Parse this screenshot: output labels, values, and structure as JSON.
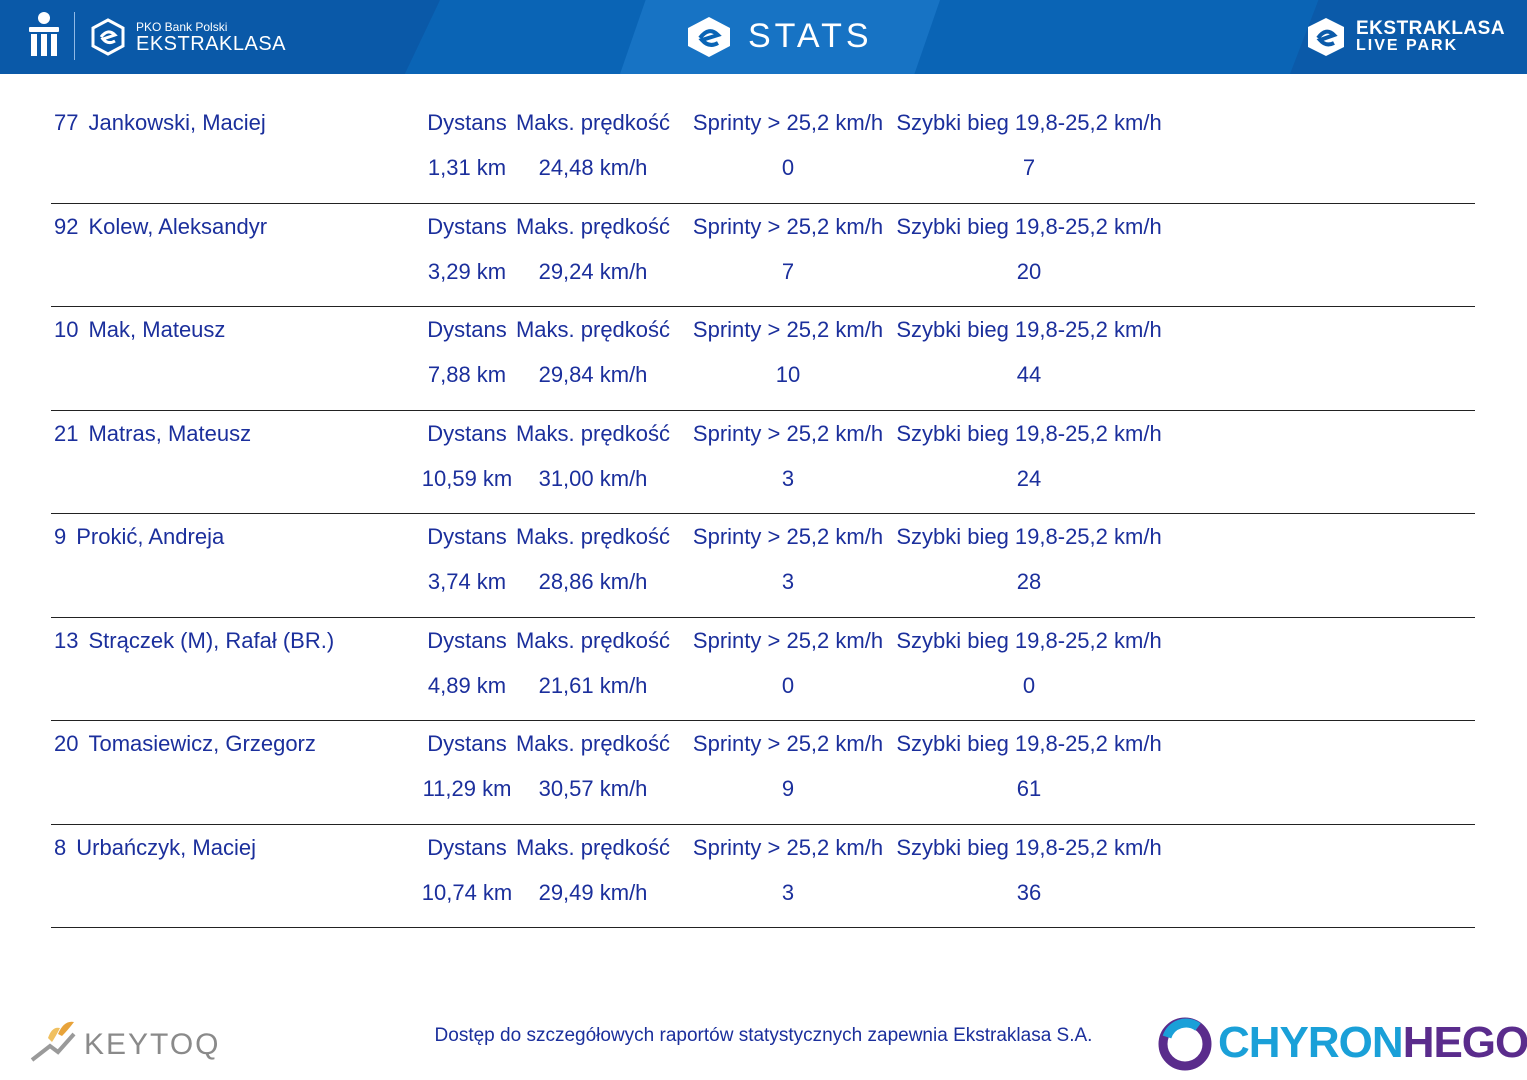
{
  "header": {
    "brand_small": "PKO Bank Polski",
    "brand_big": "EKSTRAKLASA",
    "title": "STATS",
    "live_top": "EKSTRAKLASA",
    "live_bottom": "LIVE PARK",
    "colors": {
      "bar": "#0a64b5",
      "text": "#ffffff"
    }
  },
  "labels": {
    "distance": "Dystans",
    "max_speed": "Maks. prędkość",
    "sprints": "Sprinty > 25,2 km/h",
    "fast_runs": "Szybki bieg 19,8-25,2 km/h"
  },
  "players": [
    {
      "number": "77",
      "name": "Jankowski, Maciej",
      "distance": "1,31 km",
      "max_speed": "24,48 km/h",
      "sprints": "0",
      "fast_runs": "7"
    },
    {
      "number": "92",
      "name": "Kolew, Aleksandyr",
      "distance": "3,29 km",
      "max_speed": "29,24 km/h",
      "sprints": "7",
      "fast_runs": "20"
    },
    {
      "number": "10",
      "name": "Mak, Mateusz",
      "distance": "7,88 km",
      "max_speed": "29,84 km/h",
      "sprints": "10",
      "fast_runs": "44"
    },
    {
      "number": "21",
      "name": "Matras, Mateusz",
      "distance": "10,59 km",
      "max_speed": "31,00 km/h",
      "sprints": "3",
      "fast_runs": "24"
    },
    {
      "number": "9",
      "name": "Prokić, Andreja",
      "distance": "3,74 km",
      "max_speed": "28,86 km/h",
      "sprints": "3",
      "fast_runs": "28"
    },
    {
      "number": "13",
      "name": "Strączek (M), Rafał (BR.)",
      "distance": "4,89 km",
      "max_speed": "21,61 km/h",
      "sprints": "0",
      "fast_runs": "0"
    },
    {
      "number": "20",
      "name": "Tomasiewicz, Grzegorz",
      "distance": "11,29 km",
      "max_speed": "30,57 km/h",
      "sprints": "9",
      "fast_runs": "61"
    },
    {
      "number": "8",
      "name": "Urbańczyk, Maciej",
      "distance": "10,74 km",
      "max_speed": "29,49 km/h",
      "sprints": "3",
      "fast_runs": "36"
    }
  ],
  "footer": {
    "note": "Dostęp do szczegółowych raportów statystycznych zapewnia Ekstraklasa S.A.",
    "keytoq": "KEYTOQ",
    "chyron_a": "CHYRON",
    "chyron_b": "HEGO"
  },
  "icons": {
    "pko_logo": "pko-logo-icon",
    "ekstraklasa_logo": "ekstraklasa-logo-icon",
    "stats": "stats-logo-icon",
    "live_park": "live-park-logo-icon",
    "keytoq": "keytoq-logo-icon",
    "chyronhego": "chyronhego-logo-icon"
  }
}
